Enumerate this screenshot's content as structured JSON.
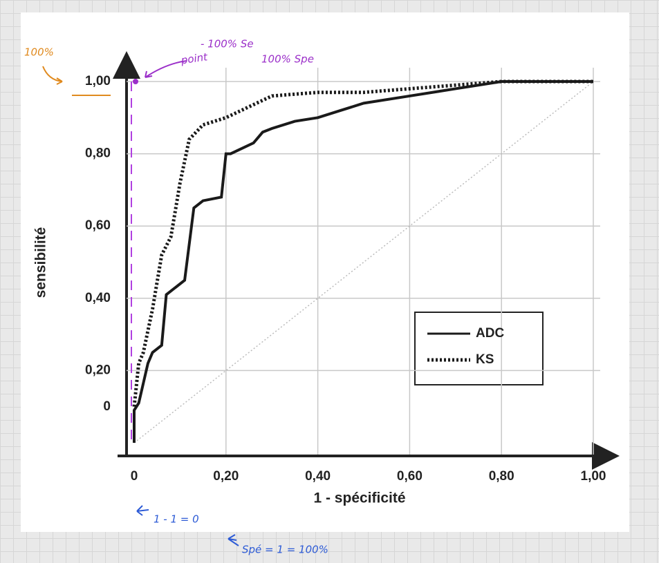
{
  "chart_data": {
    "type": "line",
    "x_label": "1 - spécificité",
    "y_label": "sensibilité",
    "xlim": [
      0,
      1
    ],
    "ylim": [
      0,
      1
    ],
    "xticks": [
      0,
      {
        "value": 0.2,
        "label": "0,20"
      },
      {
        "value": 0.4,
        "label": "0,40"
      },
      {
        "value": 0.6,
        "label": "0,60"
      },
      {
        "value": 0.8,
        "label": "0,80"
      },
      {
        "value": 1,
        "label": "1,00"
      }
    ],
    "yticks": [
      0,
      {
        "value": 0.2,
        "label": "0,20"
      },
      {
        "value": 0.4,
        "label": "0,40"
      },
      {
        "value": 0.6,
        "label": "0,60"
      },
      {
        "value": 0.8,
        "label": "0,80"
      },
      {
        "value": 1,
        "label": "1,00"
      }
    ],
    "grid": true,
    "legend": "lower right",
    "series": [
      {
        "name": "ADC",
        "color": "#1a1a1a",
        "style": "solid",
        "x": [
          0,
          0,
          0.01,
          0.03,
          0.04,
          0.06,
          0.07,
          0.08,
          0.11,
          0.13,
          0.15,
          0.19,
          0.2,
          0.21,
          0.26,
          0.28,
          0.3,
          0.35,
          0.4,
          0.45,
          0.5,
          0.6,
          0.7,
          0.8,
          1.0
        ],
        "values": [
          0,
          0.09,
          0.11,
          0.22,
          0.25,
          0.27,
          0.41,
          0.42,
          0.45,
          0.65,
          0.67,
          0.68,
          0.8,
          0.8,
          0.83,
          0.86,
          0.87,
          0.89,
          0.9,
          0.92,
          0.94,
          0.96,
          0.98,
          1.0,
          1.0
        ]
      },
      {
        "name": "KS",
        "color": "#1a1a1a",
        "style": "dotted",
        "x": [
          0,
          0.01,
          0.02,
          0.04,
          0.06,
          0.08,
          0.1,
          0.12,
          0.15,
          0.2,
          0.25,
          0.3,
          0.4,
          0.5,
          0.6,
          0.7,
          0.8,
          1.0
        ],
        "values": [
          0.1,
          0.22,
          0.25,
          0.37,
          0.52,
          0.57,
          0.72,
          0.84,
          0.88,
          0.9,
          0.93,
          0.96,
          0.97,
          0.97,
          0.98,
          0.99,
          1.0,
          1.0
        ]
      }
    ],
    "annotations": [
      {
        "text": "100%",
        "color": "#e08a1e"
      },
      {
        "text": "point",
        "color": "#9b2fc9"
      },
      {
        "text": "- 100% Se",
        "color": "#9b2fc9"
      },
      {
        "text": "100% Spe",
        "color": "#9b2fc9"
      },
      {
        "text": "1 - 1 = 0",
        "color": "#2d5bd6"
      },
      {
        "text": "Spé = 1 = 100%",
        "color": "#2d5bd6"
      }
    ]
  }
}
